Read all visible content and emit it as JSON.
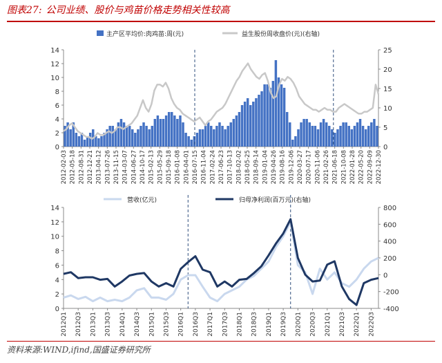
{
  "header": {
    "figure_no": "图表27:",
    "title": "公司业绩、股价与鸡苗价格走势相关性较高"
  },
  "footer": {
    "source": "资料来源:WIND,ifind,国盛证券研究所"
  },
  "colors": {
    "bar": "#4472c4",
    "price_line": "#c8c8c8",
    "revenue_line": "#c9d8ee",
    "profit_line": "#1f3864",
    "divider": "#2e4d7b",
    "accent": "#c00000"
  },
  "chart_data": [
    {
      "type": "bar",
      "legend": [
        "主产区平均价:肉鸡苗:周(元)",
        "益生股份周收盘价(元)(右轴)"
      ],
      "x_ticks": [
        "2012-02-03",
        "2012-05-18",
        "2012-08-31",
        "2012-12-21",
        "2013-04-12",
        "2013-07-26",
        "2013-11-15",
        "2014-03-07",
        "2014-06-27",
        "2014-10-17",
        "2015-02-13",
        "2015-05-29",
        "2015-09-18",
        "2016-01-08",
        "2016-04-01",
        "2016-07-15",
        "2016-11-04",
        "2017-02-24",
        "2017-06-23",
        "2017-10-13",
        "2018-02-02",
        "2018-05-25",
        "2018-09-14",
        "2019-01-04",
        "2019-04-26",
        "2019-08-16",
        "2019-12-06",
        "2020-03-27",
        "2020-07-17",
        "2020-11-06",
        "2021-02-26",
        "2021-06-18",
        "2021-10-08",
        "2022-01-28",
        "2022-05-20",
        "2022-09-09",
        "2022-12-30"
      ],
      "y_left_ticks": [
        "0",
        "2",
        "4",
        "6",
        "8",
        "10",
        "12",
        "14"
      ],
      "y_right_ticks": [
        "0",
        "5",
        "10",
        "15",
        "20",
        "25"
      ],
      "ylim_left": [
        0,
        14
      ],
      "ylim_right": [
        0,
        25
      ],
      "series": [
        {
          "name": "主产区平均价:肉鸡苗:周(元)",
          "axis": "left",
          "type": "bar",
          "values": [
            3.0,
            3.5,
            2.5,
            3.5,
            2.0,
            1.5,
            2.0,
            1.0,
            1.5,
            2.0,
            2.5,
            1.5,
            1.2,
            1.5,
            2.0,
            2.5,
            3.0,
            3.0,
            2.5,
            3.5,
            4.0,
            3.5,
            3.0,
            3.0,
            2.5,
            2.0,
            2.5,
            3.0,
            3.5,
            3.0,
            2.5,
            3.0,
            4.0,
            4.5,
            4.0,
            4.0,
            4.5,
            5.0,
            5.0,
            4.5,
            4.0,
            4.5,
            3.5,
            2.0,
            1.5,
            1.0,
            1.5,
            2.0,
            2.5,
            2.5,
            3.0,
            3.5,
            3.0,
            2.5,
            3.0,
            3.5,
            3.0,
            2.5,
            3.0,
            3.5,
            4.0,
            4.5,
            5.0,
            6.0,
            6.5,
            7.0,
            6.0,
            6.5,
            7.0,
            7.5,
            8.0,
            9.0,
            9.0,
            8.5,
            9.5,
            12.5,
            10.0,
            9.0,
            8.5,
            5.0,
            3.5,
            1.0,
            1.5,
            2.5,
            3.5,
            4.0,
            4.0,
            3.5,
            3.0,
            3.0,
            2.5,
            3.5,
            4.0,
            3.5,
            3.0,
            2.5,
            2.0,
            2.5,
            3.0,
            3.5,
            3.5,
            3.0,
            2.5,
            3.0,
            3.5,
            4.0,
            3.0,
            2.5,
            3.0,
            3.5,
            4.0,
            3.0
          ]
        },
        {
          "name": "益生股份周收盘价(元)(右轴)",
          "axis": "right",
          "type": "line",
          "values": [
            4.0,
            4.5,
            5.5,
            6.0,
            5.0,
            4.0,
            3.5,
            3.0,
            2.5,
            2.5,
            2.0,
            2.5,
            3.5,
            3.0,
            3.0,
            3.5,
            4.0,
            3.5,
            4.0,
            5.0,
            5.0,
            4.5,
            5.0,
            5.5,
            6.0,
            7.0,
            8.0,
            10.0,
            12.0,
            10.0,
            9.0,
            11.0,
            14.5,
            16.0,
            16.0,
            15.5,
            16.5,
            15.0,
            12.5,
            11.0,
            10.0,
            9.5,
            8.5,
            8.0,
            7.5,
            7.0,
            6.5,
            7.0,
            7.5,
            6.5,
            5.5,
            6.5,
            7.0,
            8.0,
            9.0,
            9.5,
            10.0,
            11.0,
            12.5,
            14.0,
            15.5,
            17.0,
            18.0,
            19.5,
            20.5,
            21.5,
            20.0,
            19.0,
            18.0,
            17.5,
            18.5,
            19.0,
            17.0,
            14.0,
            12.5,
            13.0,
            16.0,
            17.5,
            17.0,
            18.0,
            17.5,
            16.5,
            15.0,
            13.0,
            12.0,
            11.0,
            10.5,
            10.0,
            9.5,
            9.5,
            9.0,
            9.5,
            10.0,
            9.5,
            9.5,
            9.0,
            9.0,
            10.0,
            10.5,
            11.0,
            10.5,
            10.0,
            9.5,
            9.0,
            8.5,
            8.5,
            9.0,
            9.0,
            9.5,
            10.0,
            16.0,
            13.5
          ]
        }
      ],
      "markers": [
        "2016-07-15",
        "2020-01-10"
      ]
    },
    {
      "type": "line",
      "legend": [
        "营收(亿元)",
        "归母净利润(百万元)(右轴)"
      ],
      "categories": [
        "2012Q1",
        "2012Q2",
        "2012Q3",
        "2012Q4",
        "2013Q1",
        "2013Q2",
        "2013Q3",
        "2013Q4",
        "2014Q1",
        "2014Q2",
        "2014Q3",
        "2014Q4",
        "2015Q1",
        "2015Q2",
        "2015Q3",
        "2015Q4",
        "2016Q1",
        "2016Q2",
        "2016Q3",
        "2016Q4",
        "2017Q1",
        "2017Q2",
        "2017Q3",
        "2017Q4",
        "2018Q1",
        "2018Q2",
        "2018Q3",
        "2018Q4",
        "2019Q1",
        "2019Q2",
        "2019Q3",
        "2019Q4",
        "2020Q1",
        "2020Q2",
        "2020Q3",
        "2020Q4",
        "2021Q1",
        "2021Q2",
        "2021Q3",
        "2021Q4",
        "2022Q1",
        "2022Q2",
        "2022Q3",
        "2022Q4"
      ],
      "x_tick_labels": [
        "2012Q1",
        "2012Q3",
        "2013Q1",
        "2013Q3",
        "2014Q1",
        "2014Q3",
        "2015Q1",
        "2015Q3",
        "2016Q1",
        "2016Q3",
        "2017Q1",
        "2017Q3",
        "2018Q1",
        "2018Q3",
        "2019Q1",
        "2019Q3",
        "2020Q1",
        "2020Q3",
        "2021Q1",
        "2021Q3",
        "2022Q1",
        "2022Q3"
      ],
      "y_left_ticks": [
        "0",
        "2",
        "4",
        "6",
        "8",
        "10",
        "12",
        "14"
      ],
      "y_right_ticks": [
        "-400",
        "-200",
        "0",
        "200",
        "400",
        "600",
        "800"
      ],
      "ylim_left": [
        0,
        14
      ],
      "ylim_right": [
        -400,
        800
      ],
      "series": [
        {
          "name": "营收(亿元)",
          "axis": "left",
          "values": [
            1.5,
            1.8,
            1.3,
            1.6,
            1.0,
            1.5,
            1.0,
            1.2,
            1.0,
            1.5,
            2.5,
            2.8,
            1.5,
            1.5,
            1.2,
            2.0,
            4.0,
            4.6,
            4.6,
            3.0,
            1.5,
            1.0,
            2.0,
            2.5,
            3.0,
            4.0,
            4.5,
            5.5,
            6.5,
            8.5,
            10.0,
            12.0,
            6.0,
            5.0,
            2.0,
            5.5,
            4.0,
            5.0,
            3.5,
            3.0,
            4.0,
            5.5,
            6.5,
            7.0
          ]
        },
        {
          "name": "归母净利润(百万元)(右轴)",
          "axis": "right",
          "values": [
            10,
            30,
            -40,
            -30,
            -30,
            -60,
            -50,
            -140,
            -80,
            -10,
            10,
            20,
            -80,
            -140,
            -100,
            -140,
            70,
            150,
            220,
            60,
            30,
            -140,
            -80,
            -140,
            -60,
            -50,
            20,
            100,
            230,
            370,
            490,
            660,
            200,
            0,
            -80,
            -70,
            120,
            160,
            -140,
            -290,
            -360,
            -100,
            -60,
            -40
          ]
        }
      ],
      "markers": [
        "2016Q2",
        "2019Q4"
      ]
    }
  ]
}
